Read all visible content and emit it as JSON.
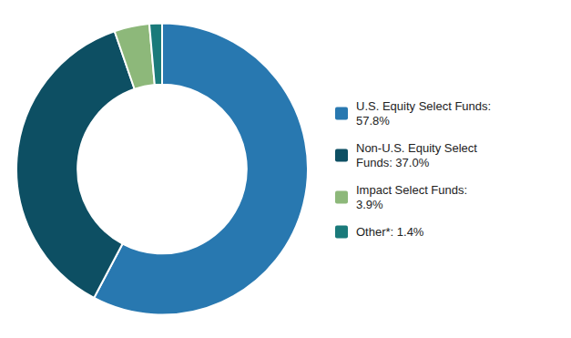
{
  "chart_data": {
    "type": "donut",
    "categories": [
      "U.S. Equity Select Funds:\n57.8%",
      "Non-U.S. Equity Select\nFunds: 37.0%",
      "Impact Select Funds:\n3.9%",
      "Other*: 1.4%"
    ],
    "values": [
      57.8,
      37.0,
      3.9,
      1.4
    ],
    "colors": [
      "#2878b0",
      "#0d4f63",
      "#8db87a",
      "#1a7a7a"
    ],
    "legend": "right"
  }
}
